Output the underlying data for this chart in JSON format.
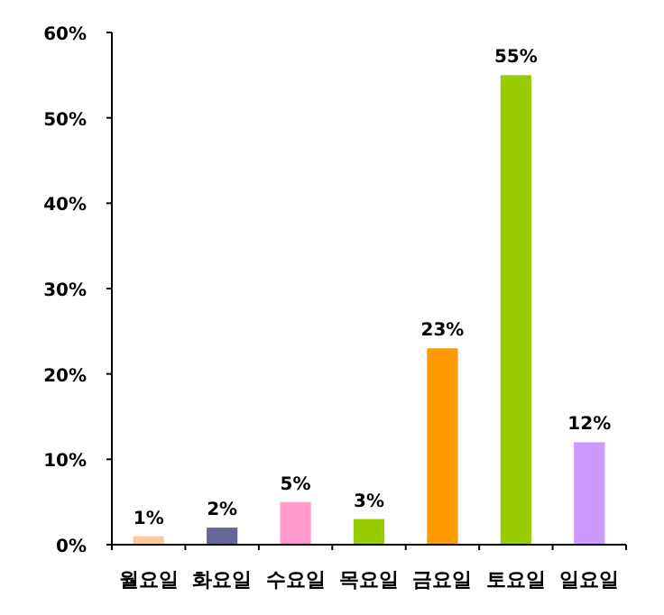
{
  "chart_data": {
    "type": "bar",
    "categories": [
      "월요일",
      "화요일",
      "수요일",
      "목요일",
      "금요일",
      "토요일",
      "일요일"
    ],
    "values": [
      1,
      2,
      5,
      3,
      23,
      55,
      12
    ],
    "colors": [
      "#ffcc99",
      "#666699",
      "#ff99cc",
      "#99cc00",
      "#ff9900",
      "#99cc00",
      "#cc99ff"
    ],
    "value_labels": [
      "1%",
      "2%",
      "5%",
      "3%",
      "23%",
      "55%",
      "12%"
    ],
    "ylim": [
      0,
      60
    ],
    "yticks": [
      {
        "value": 0,
        "label": "0%"
      },
      {
        "value": 10,
        "label": "10%"
      },
      {
        "value": 20,
        "label": "20%"
      },
      {
        "value": 30,
        "label": "30%"
      },
      {
        "value": 40,
        "label": "40%"
      },
      {
        "value": 50,
        "label": "50%"
      },
      {
        "value": 60,
        "label": "60%"
      }
    ]
  }
}
